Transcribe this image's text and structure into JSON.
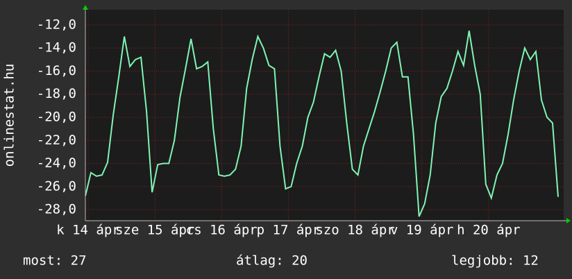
{
  "chart_data": {
    "type": "line",
    "y_label": "onlinestat.hu",
    "x": [
      0,
      2,
      4,
      6,
      8,
      10,
      12,
      14,
      16,
      18,
      20,
      22,
      24,
      26,
      28,
      30,
      32,
      34,
      36,
      38,
      40,
      42,
      44,
      46,
      48,
      50,
      52,
      54,
      56,
      58,
      60,
      62,
      64,
      66,
      68,
      70,
      72,
      74,
      76,
      78,
      80,
      82,
      84,
      86,
      88,
      90,
      92,
      94,
      96,
      98,
      100,
      102,
      104,
      106,
      108,
      110,
      112,
      114,
      116,
      118,
      120,
      122,
      124,
      126,
      128,
      130,
      132,
      134,
      136,
      138,
      140,
      142,
      144,
      146,
      148,
      150,
      152,
      154,
      156,
      158,
      160,
      162,
      164,
      166,
      168,
      170
    ],
    "series": [
      {
        "name": null,
        "color": "#7ff5b4",
        "values": [
          -26.8,
          -24.8,
          -25.1,
          -25.0,
          -23.9,
          -19.8,
          -16.5,
          -13.0,
          -15.6,
          -15.0,
          -14.8,
          -19.5,
          -26.5,
          -24.1,
          -24.0,
          -24.0,
          -22.0,
          -18.3,
          -15.8,
          -13.2,
          -15.8,
          -15.6,
          -15.2,
          -21.0,
          -25.0,
          -25.1,
          -25.0,
          -24.5,
          -22.5,
          -17.5,
          -15.0,
          -13.0,
          -14.0,
          -15.5,
          -15.8,
          -22.5,
          -26.2,
          -26.0,
          -24.0,
          -22.5,
          -20.0,
          -18.7,
          -16.5,
          -14.5,
          -14.8,
          -14.2,
          -16.0,
          -20.5,
          -24.5,
          -25.0,
          -22.5,
          -21.0,
          -19.5,
          -17.8,
          -16.0,
          -14.0,
          -13.5,
          -16.5,
          -16.5,
          -21.5,
          -28.6,
          -27.5,
          -25.0,
          -20.5,
          -18.2,
          -17.5,
          -16.0,
          -14.3,
          -15.5,
          -12.5,
          -15.5,
          -18.0,
          -25.8,
          -27.0,
          -25.0,
          -24.0,
          -21.5,
          -18.5,
          -16.0,
          -14.0,
          -15.0,
          -14.3,
          -18.5,
          -20.0,
          -20.5,
          -26.9
        ]
      }
    ],
    "xlim": [
      0,
      172
    ],
    "xticks": [
      {
        "value": 1,
        "label": "k 14 ápr"
      },
      {
        "value": 25,
        "label": "sze 15 ápr"
      },
      {
        "value": 49,
        "label": "cs 16 ápr"
      },
      {
        "value": 73,
        "label": "p 17 ápr"
      },
      {
        "value": 97,
        "label": "szo 18 ápr"
      },
      {
        "value": 121,
        "label": "v 19 ápr"
      },
      {
        "value": 145,
        "label": "h 20 ápr"
      }
    ],
    "ylim": [
      -28.96,
      -10.68
    ],
    "yticks": [
      {
        "value": -12,
        "label": "-12,0"
      },
      {
        "value": -14,
        "label": "-14,0"
      },
      {
        "value": -16,
        "label": "-16,0"
      },
      {
        "value": -18,
        "label": "-18,0"
      },
      {
        "value": -20,
        "label": "-20,0"
      },
      {
        "value": -22,
        "label": "-22,0"
      },
      {
        "value": -24,
        "label": "-24,0"
      },
      {
        "value": -26,
        "label": "-26,0"
      },
      {
        "value": -28,
        "label": "-28,0"
      }
    ],
    "grid": true,
    "legend_items": [
      "most: 27",
      "átlag: 20",
      "legjobb: 12"
    ]
  }
}
